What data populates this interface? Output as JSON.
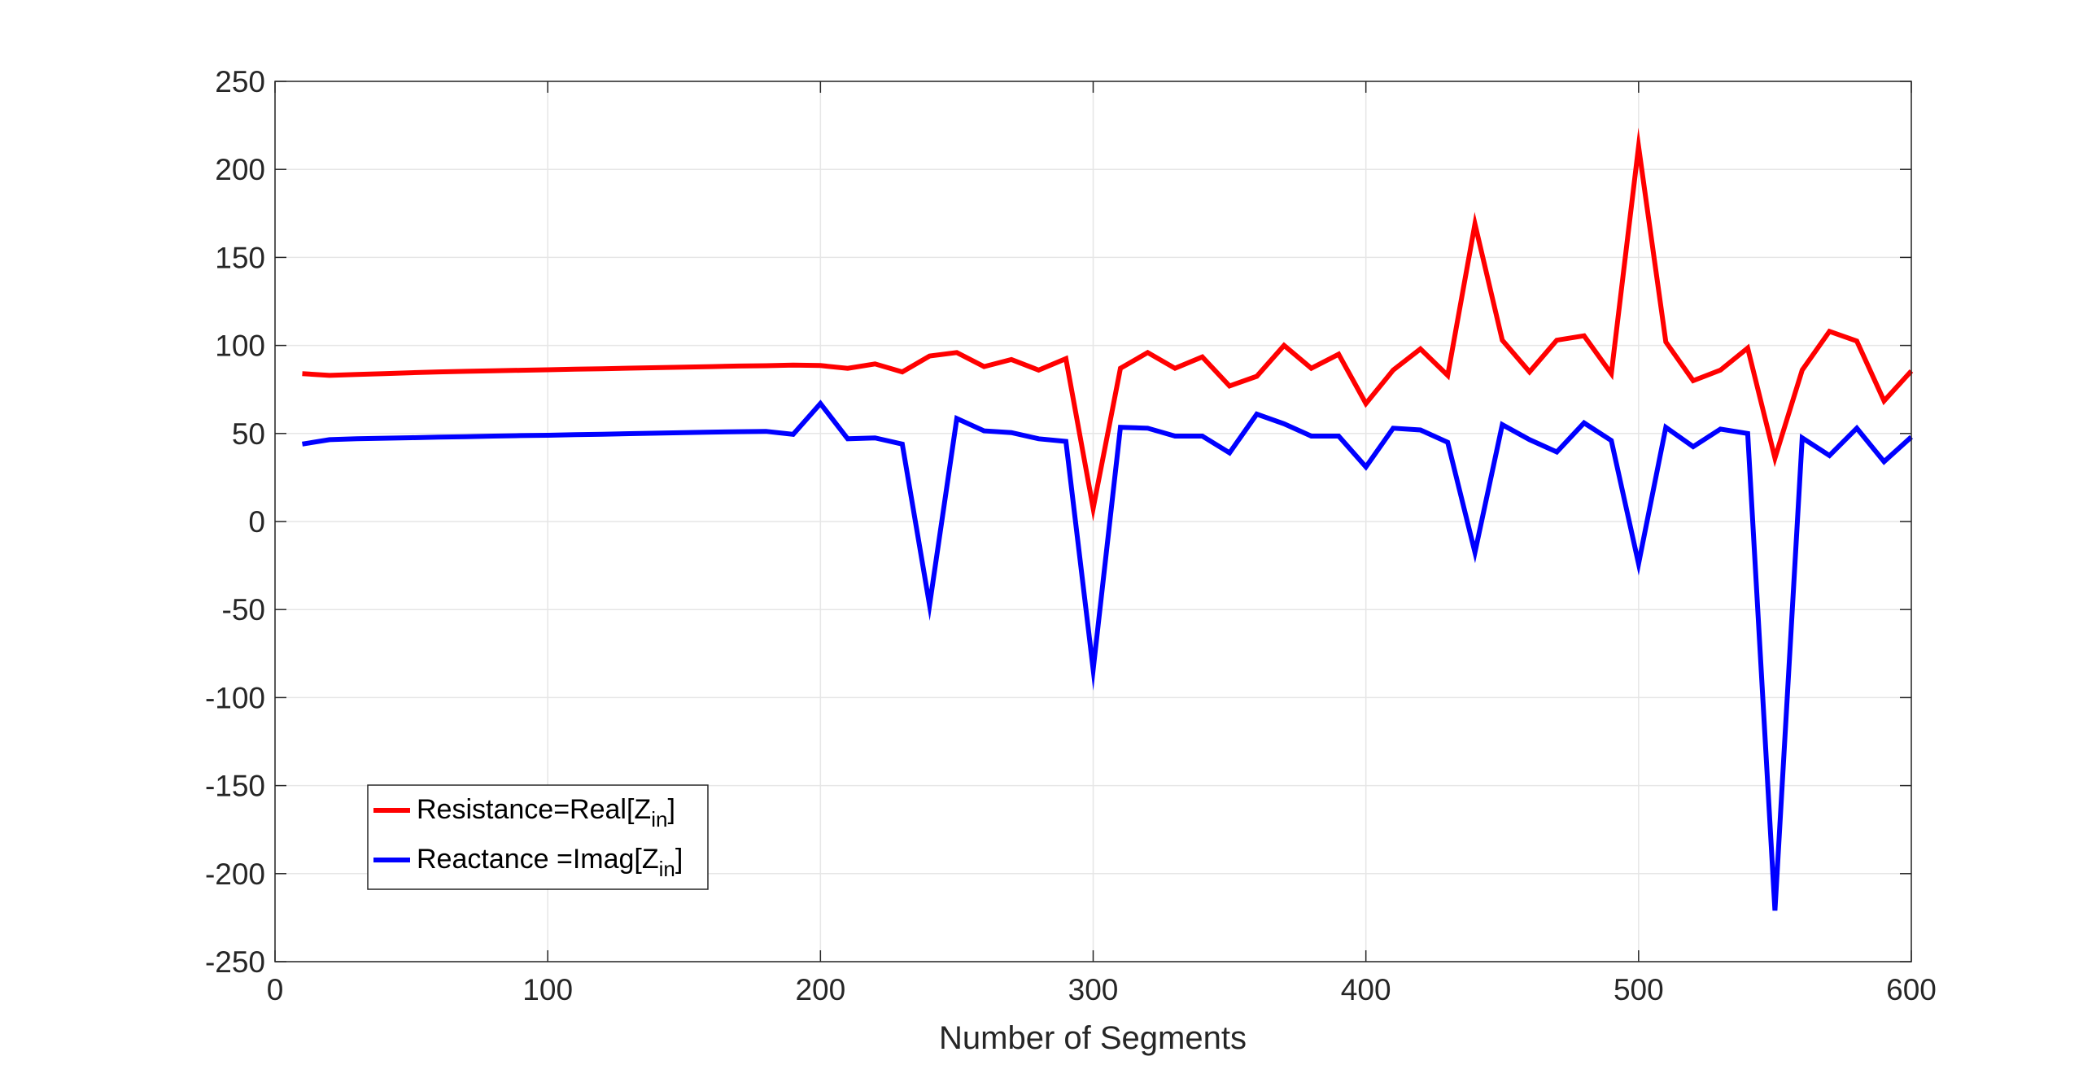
{
  "chart_data": {
    "type": "line",
    "title": "",
    "xlabel": "Number of Segments",
    "ylabel": "",
    "xlim": [
      0,
      600
    ],
    "ylim": [
      -250,
      250
    ],
    "xticks": [
      "0",
      "100",
      "200",
      "300",
      "400",
      "500",
      "600"
    ],
    "yticks": [
      "250",
      "200",
      "150",
      "100",
      "50",
      "0",
      "-50",
      "-100",
      "-150",
      "-200",
      "-250"
    ],
    "grid": true,
    "legend_position": "lower-left",
    "x": [
      10,
      20,
      30,
      40,
      50,
      60,
      70,
      80,
      90,
      100,
      110,
      120,
      130,
      140,
      150,
      160,
      170,
      180,
      190,
      200,
      210,
      220,
      230,
      240,
      250,
      260,
      270,
      280,
      290,
      300,
      310,
      320,
      330,
      340,
      350,
      360,
      370,
      380,
      390,
      400,
      410,
      420,
      430,
      440,
      450,
      460,
      470,
      480,
      490,
      500,
      510,
      520,
      530,
      540,
      550,
      560,
      570,
      580,
      590,
      600
    ],
    "series": [
      {
        "name": "Resistance=Real[Z",
        "name_sub": "in",
        "name_end": "]",
        "color": "#ff0000",
        "values": [
          84,
          83,
          83.5,
          84,
          84.5,
          85,
          85.3,
          85.6,
          85.9,
          86.2,
          86.5,
          86.8,
          87.1,
          87.4,
          87.7,
          88,
          88.3,
          88.5,
          88.8,
          88.6,
          87,
          89.5,
          85,
          94,
          96,
          88,
          92,
          86,
          92.5,
          7.5,
          87,
          96,
          87,
          93.5,
          77,
          82.5,
          100,
          87,
          95,
          67,
          86,
          98,
          83,
          169,
          103,
          85,
          103,
          105.5,
          84,
          213,
          102,
          80,
          86,
          98.5,
          36,
          86,
          108,
          102.5,
          68.5,
          85.5
        ]
      },
      {
        "name": "Reactance =Imag[Z",
        "name_sub": "in",
        "name_end": "]",
        "color": "#0000ff",
        "values": [
          44,
          46.5,
          47,
          47.3,
          47.6,
          47.9,
          48.2,
          48.5,
          48.8,
          49,
          49.3,
          49.6,
          49.9,
          50.2,
          50.5,
          50.8,
          51,
          51.2,
          49.5,
          67,
          47,
          47.5,
          44,
          -47.5,
          58.5,
          51.5,
          50.5,
          47,
          45.5,
          -84,
          53.5,
          53,
          48.5,
          48.5,
          39,
          61,
          55.5,
          48.5,
          48.5,
          31,
          53,
          52,
          45,
          -17.5,
          55,
          46.5,
          39.5,
          56,
          46,
          -24,
          53.5,
          42.5,
          52.5,
          50,
          -221,
          47.5,
          37.5,
          53,
          34,
          48
        ]
      }
    ]
  }
}
